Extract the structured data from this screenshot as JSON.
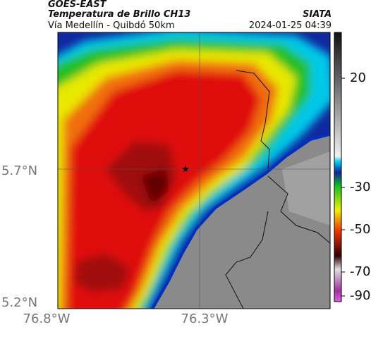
{
  "header": {
    "title": "GOES-EAST",
    "subtitle": "Temperatura de Brillo CH13",
    "source": "SIATA",
    "region": "Vía Medellín - Quibdó 50km",
    "timestamp": "2024-01-25 04:39"
  },
  "map": {
    "lat_labels": [
      "5.7°N",
      "5.2°N"
    ],
    "lon_labels": [
      "76.8°W",
      "76.3°W"
    ]
  },
  "colorbar": {
    "ticks": [
      20,
      -30,
      -50,
      -70,
      -90
    ]
  }
}
